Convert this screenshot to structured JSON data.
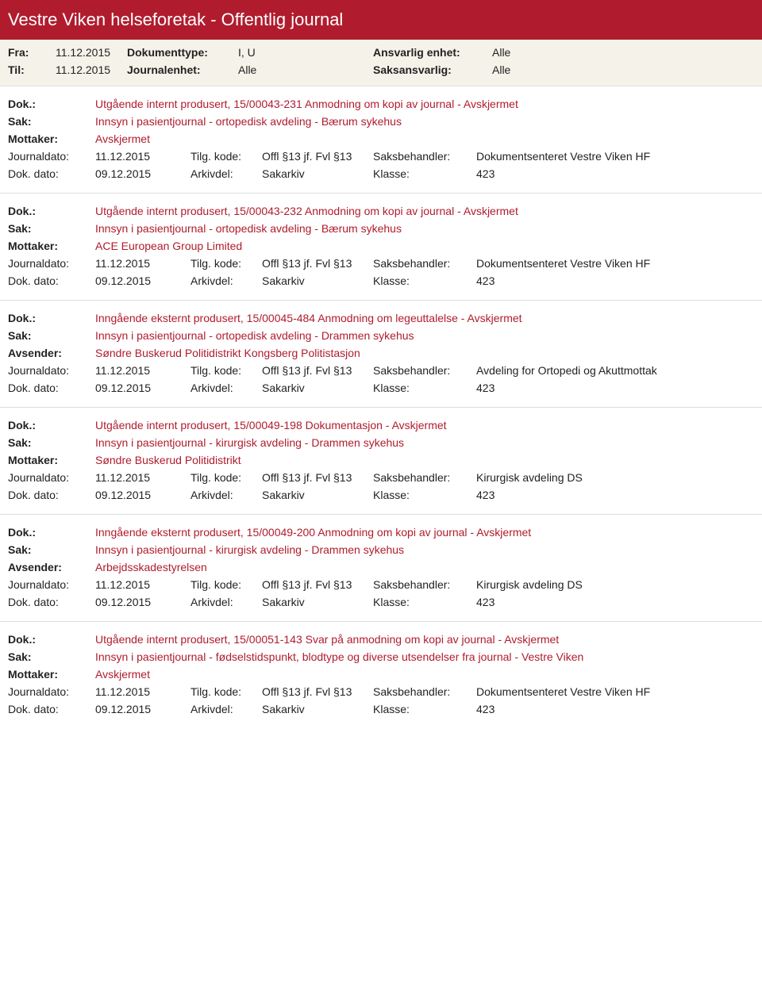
{
  "header": {
    "title": "Vestre Viken helseforetak - Offentlig journal"
  },
  "filters": {
    "fra_label": "Fra:",
    "fra_val": "11.12.2015",
    "til_label": "Til:",
    "til_val": "11.12.2015",
    "doktype_label": "Dokumenttype:",
    "doktype_val": "I, U",
    "journalenhet_label": "Journalenhet:",
    "journalenhet_val": "Alle",
    "ansvarlig_label": "Ansvarlig enhet:",
    "ansvarlig_val": "Alle",
    "saksansvarlig_label": "Saksansvarlig:",
    "saksansvarlig_val": "Alle"
  },
  "labels": {
    "dok": "Dok.:",
    "sak": "Sak:",
    "mottaker": "Mottaker:",
    "avsender": "Avsender:",
    "journaldato": "Journaldato:",
    "dokdato": "Dok. dato:",
    "tilgkode": "Tilg. kode:",
    "arkivdel": "Arkivdel:",
    "saksbehandler": "Saksbehandler:",
    "klasse": "Klasse:"
  },
  "records": [
    {
      "dok": "Utgående internt produsert, 15/00043-231 Anmodning om kopi av journal - Avskjermet",
      "sak": "Innsyn i pasientjournal - ortopedisk avdeling - Bærum sykehus",
      "party_label": "Mottaker:",
      "party_val": "Avskjermet",
      "party_red": true,
      "journaldato": "11.12.2015",
      "tilgkode": "Offl §13 jf. Fvl §13",
      "saksbehandler": "Dokumentsenteret Vestre Viken HF",
      "dokdato": "09.12.2015",
      "arkivdel": "Sakarkiv",
      "klasse": "423"
    },
    {
      "dok": "Utgående internt produsert, 15/00043-232 Anmodning om kopi av journal - Avskjermet",
      "sak": "Innsyn i pasientjournal - ortopedisk avdeling - Bærum sykehus",
      "party_label": "Mottaker:",
      "party_val": "ACE European Group Limited",
      "party_red": true,
      "journaldato": "11.12.2015",
      "tilgkode": "Offl §13 jf. Fvl §13",
      "saksbehandler": "Dokumentsenteret Vestre Viken HF",
      "dokdato": "09.12.2015",
      "arkivdel": "Sakarkiv",
      "klasse": "423"
    },
    {
      "dok": "Inngående eksternt produsert, 15/00045-484 Anmodning om legeuttalelse - Avskjermet",
      "sak": "Innsyn i pasientjournal - ortopedisk avdeling - Drammen sykehus",
      "party_label": "Avsender:",
      "party_val": "Søndre Buskerud Politidistrikt Kongsberg Politistasjon",
      "party_red": true,
      "journaldato": "11.12.2015",
      "tilgkode": "Offl §13 jf. Fvl §13",
      "saksbehandler": "Avdeling for Ortopedi og Akuttmottak",
      "dokdato": "09.12.2015",
      "arkivdel": "Sakarkiv",
      "klasse": "423"
    },
    {
      "dok": "Utgående internt produsert, 15/00049-198 Dokumentasjon - Avskjermet",
      "sak": "Innsyn i pasientjournal - kirurgisk avdeling - Drammen sykehus",
      "party_label": "Mottaker:",
      "party_val": "Søndre Buskerud Politidistrikt",
      "party_red": true,
      "journaldato": "11.12.2015",
      "tilgkode": "Offl §13 jf. Fvl §13",
      "saksbehandler": "Kirurgisk avdeling DS",
      "dokdato": "09.12.2015",
      "arkivdel": "Sakarkiv",
      "klasse": "423"
    },
    {
      "dok": "Inngående eksternt produsert, 15/00049-200 Anmodning om kopi av journal - Avskjermet",
      "sak": "Innsyn i pasientjournal - kirurgisk avdeling - Drammen sykehus",
      "party_label": "Avsender:",
      "party_val": "Arbejdsskadestyrelsen",
      "party_red": true,
      "journaldato": "11.12.2015",
      "tilgkode": "Offl §13 jf. Fvl §13",
      "saksbehandler": "Kirurgisk avdeling DS",
      "dokdato": "09.12.2015",
      "arkivdel": "Sakarkiv",
      "klasse": "423"
    },
    {
      "dok": "Utgående internt produsert, 15/00051-143 Svar på anmodning om kopi av journal - Avskjermet",
      "sak": "Innsyn i pasientjournal - fødselstidspunkt, blodtype og diverse utsendelser fra journal - Vestre Viken",
      "party_label": "Mottaker:",
      "party_val": "Avskjermet",
      "party_red": true,
      "journaldato": "11.12.2015",
      "tilgkode": "Offl §13 jf. Fvl §13",
      "saksbehandler": "Dokumentsenteret Vestre Viken HF",
      "dokdato": "09.12.2015",
      "arkivdel": "Sakarkiv",
      "klasse": "423"
    }
  ],
  "colors": {
    "brand": "#b01c2e",
    "filterbg": "#f5f2ea",
    "border": "#dddddd"
  }
}
